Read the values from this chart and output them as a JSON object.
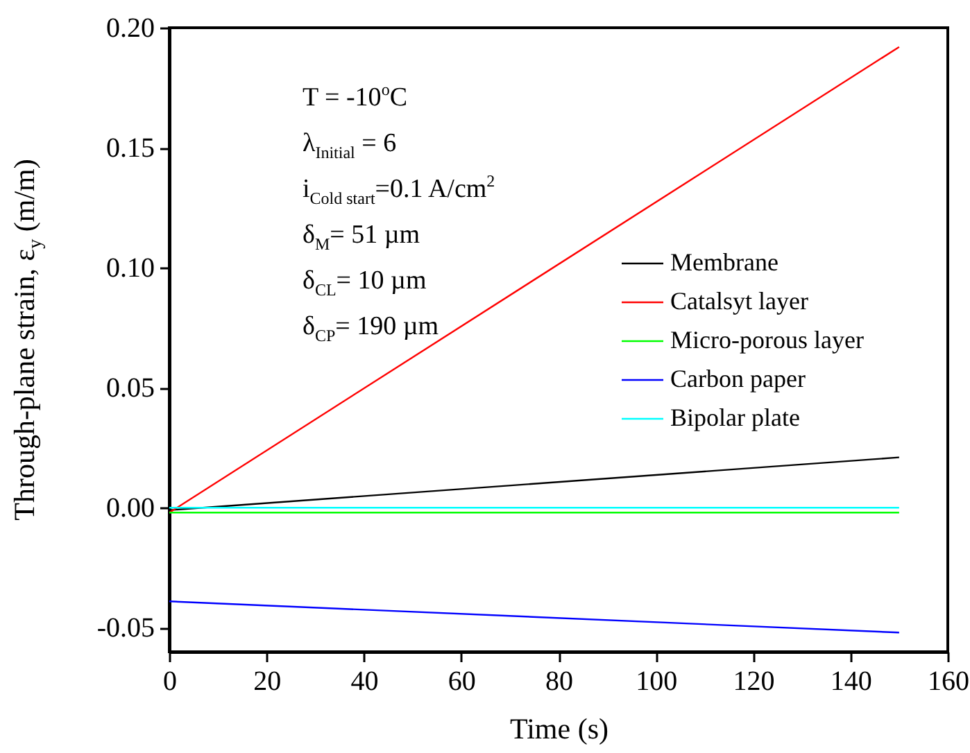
{
  "chart_data": {
    "type": "line",
    "xlabel": "Time (s)",
    "ylabel": "Through-plane strain, ε$_{y}$ (m/m)",
    "x": [
      0,
      150
    ],
    "series": [
      {
        "name": "Membrane",
        "color": "#000000",
        "values": [
          -0.001,
          0.021
        ]
      },
      {
        "name": "Catalsyt layer",
        "color": "#ff0000",
        "values": [
          -0.002,
          0.192
        ]
      },
      {
        "name": "Micro-porous layer",
        "color": "#00ff00",
        "values": [
          -0.002,
          -0.002
        ]
      },
      {
        "name": "Carbon paper",
        "color": "#0000ff",
        "values": [
          -0.039,
          -0.052
        ]
      },
      {
        "name": "Bipolar plate",
        "color": "#00ffff",
        "values": [
          0.0,
          0.0
        ]
      }
    ],
    "xlim": [
      0,
      160
    ],
    "xticks": [
      0,
      20,
      40,
      60,
      80,
      100,
      120,
      140,
      160
    ],
    "ylim": [
      -0.06,
      0.2
    ],
    "yticks": [
      {
        "value": -0.05,
        "label": "-0.05"
      },
      {
        "value": 0,
        "label": "0.00"
      },
      {
        "value": 0.05,
        "label": "0.05"
      },
      {
        "value": 0.1,
        "label": "0.10"
      },
      {
        "value": 0.15,
        "label": "0.15"
      },
      {
        "value": 0.2,
        "label": "0.20"
      }
    ],
    "annotations": [
      "T = -10$^{o}$C",
      "λ$_{Initial}$ = 6",
      "i$_{Cold start}$=0.1 A/cm$^{2}$",
      "δ$_{M}$= 51 µm",
      "δ$_{CL}$= 10 µm",
      "δ$_{CP}$= 190 µm"
    ],
    "legend": "right",
    "grid": false,
    "marker": "none",
    "line_style": "solid"
  }
}
